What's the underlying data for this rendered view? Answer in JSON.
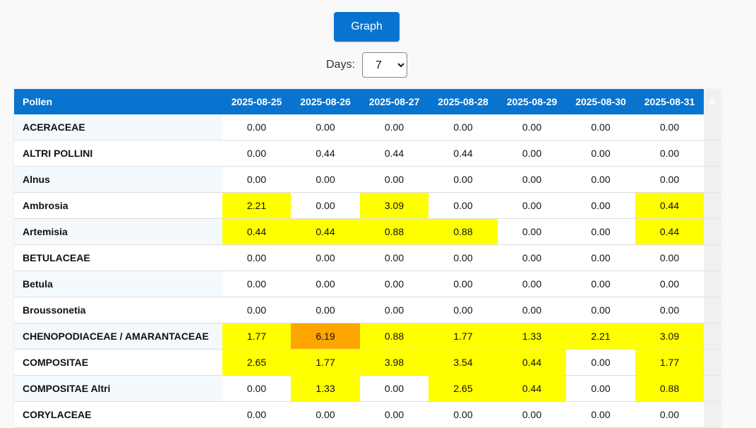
{
  "controls": {
    "graph_button": "Graph",
    "days_label": "Days:",
    "days_value": "7",
    "days_options": [
      "7"
    ]
  },
  "colors": {
    "header_bg": "#0874d0",
    "level_low": "#ffff00",
    "level_mid": "#ffa500",
    "level_none": "#ffffff"
  },
  "table": {
    "pollen_header": "Pollen",
    "extra_header": "A",
    "dates": [
      "2025-08-25",
      "2025-08-26",
      "2025-08-27",
      "2025-08-28",
      "2025-08-29",
      "2025-08-30",
      "2025-08-31"
    ],
    "rows": [
      {
        "name": "ACERACEAE",
        "values": [
          "0.00",
          "0.00",
          "0.00",
          "0.00",
          "0.00",
          "0.00",
          "0.00"
        ],
        "levels": [
          "none",
          "none",
          "none",
          "none",
          "none",
          "none",
          "none"
        ]
      },
      {
        "name": "ALTRI POLLINI",
        "values": [
          "0.00",
          "0.44",
          "0.44",
          "0.44",
          "0.00",
          "0.00",
          "0.00"
        ],
        "levels": [
          "none",
          "none",
          "none",
          "none",
          "none",
          "none",
          "none"
        ]
      },
      {
        "name": "Alnus",
        "values": [
          "0.00",
          "0.00",
          "0.00",
          "0.00",
          "0.00",
          "0.00",
          "0.00"
        ],
        "levels": [
          "none",
          "none",
          "none",
          "none",
          "none",
          "none",
          "none"
        ]
      },
      {
        "name": "Ambrosia",
        "values": [
          "2.21",
          "0.00",
          "3.09",
          "0.00",
          "0.00",
          "0.00",
          "0.44"
        ],
        "levels": [
          "low",
          "none",
          "low",
          "none",
          "none",
          "none",
          "low"
        ]
      },
      {
        "name": "Artemisia",
        "values": [
          "0.44",
          "0.44",
          "0.88",
          "0.88",
          "0.00",
          "0.00",
          "0.44"
        ],
        "levels": [
          "low",
          "low",
          "low",
          "low",
          "none",
          "none",
          "low"
        ]
      },
      {
        "name": "BETULACEAE",
        "values": [
          "0.00",
          "0.00",
          "0.00",
          "0.00",
          "0.00",
          "0.00",
          "0.00"
        ],
        "levels": [
          "none",
          "none",
          "none",
          "none",
          "none",
          "none",
          "none"
        ]
      },
      {
        "name": "Betula",
        "values": [
          "0.00",
          "0.00",
          "0.00",
          "0.00",
          "0.00",
          "0.00",
          "0.00"
        ],
        "levels": [
          "none",
          "none",
          "none",
          "none",
          "none",
          "none",
          "none"
        ]
      },
      {
        "name": "Broussonetia",
        "values": [
          "0.00",
          "0.00",
          "0.00",
          "0.00",
          "0.00",
          "0.00",
          "0.00"
        ],
        "levels": [
          "none",
          "none",
          "none",
          "none",
          "none",
          "none",
          "none"
        ]
      },
      {
        "name": "CHENOPODIACEAE / AMARANTACEAE",
        "values": [
          "1.77",
          "6.19",
          "0.88",
          "1.77",
          "1.33",
          "2.21",
          "3.09"
        ],
        "levels": [
          "low",
          "mid",
          "low",
          "low",
          "low",
          "low",
          "low"
        ]
      },
      {
        "name": "COMPOSITAE",
        "values": [
          "2.65",
          "1.77",
          "3.98",
          "3.54",
          "0.44",
          "0.00",
          "1.77"
        ],
        "levels": [
          "low",
          "low",
          "low",
          "low",
          "low",
          "none",
          "low"
        ]
      },
      {
        "name": "COMPOSITAE Altri",
        "values": [
          "0.00",
          "1.33",
          "0.00",
          "2.65",
          "0.44",
          "0.00",
          "0.88"
        ],
        "levels": [
          "none",
          "low",
          "none",
          "low",
          "low",
          "none",
          "low"
        ]
      },
      {
        "name": "CORYLACEAE",
        "values": [
          "0.00",
          "0.00",
          "0.00",
          "0.00",
          "0.00",
          "0.00",
          "0.00"
        ],
        "levels": [
          "none",
          "none",
          "none",
          "none",
          "none",
          "none",
          "none"
        ]
      }
    ]
  }
}
